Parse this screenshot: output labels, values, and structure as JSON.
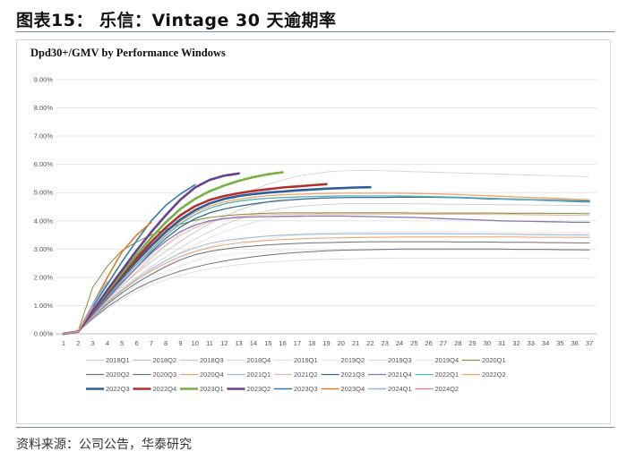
{
  "figure_title": "图表15：  乐信：Vintage 30 天逾期率",
  "source_text": "资料来源：公司公告，华泰研究",
  "colors": {
    "rule": "#6b8fb5",
    "grid": "#e6e6e6"
  },
  "chart_data": {
    "type": "line",
    "title": "Dpd30+/GMV by Performance Windows",
    "xlabel": "",
    "ylabel": "",
    "x": [
      1,
      2,
      3,
      4,
      5,
      6,
      7,
      8,
      9,
      10,
      11,
      12,
      13,
      14,
      15,
      16,
      17,
      18,
      19,
      20,
      21,
      22,
      23,
      24,
      25,
      26,
      27,
      28,
      29,
      30,
      31,
      32,
      33,
      34,
      35,
      36,
      37
    ],
    "ylim": [
      0,
      9
    ],
    "y_ticks": [
      "0.00%",
      "1.00%",
      "2.00%",
      "3.00%",
      "4.00%",
      "5.00%",
      "6.00%",
      "7.00%",
      "8.00%",
      "9.00%"
    ],
    "grid": true,
    "legend_position": "bottom",
    "series": [
      {
        "name": "2018Q1",
        "color": "#d0d0d0",
        "width": 0.8,
        "values": [
          0,
          0.08,
          0.7,
          1.3,
          1.85,
          2.3,
          2.75,
          3.15,
          3.55,
          3.95,
          4.3,
          4.6,
          4.88,
          5.1,
          5.3,
          5.45,
          5.58,
          5.67,
          5.73,
          5.77,
          5.78,
          5.78,
          5.77,
          5.76,
          5.74,
          5.73,
          5.71,
          5.7,
          5.68,
          5.67,
          5.65,
          5.64,
          5.62,
          5.61,
          5.59,
          5.58,
          5.56
        ]
      },
      {
        "name": "2018Q2",
        "color": "#bfbfbf",
        "width": 0.8,
        "values": [
          0,
          0.08,
          0.65,
          1.2,
          1.7,
          2.15,
          2.55,
          2.92,
          3.28,
          3.6,
          3.9,
          4.15,
          4.38,
          4.55,
          4.68,
          4.77,
          4.83,
          4.87,
          4.88,
          4.89,
          4.89,
          4.88,
          4.88,
          4.87,
          4.86,
          4.85,
          4.84,
          4.83,
          4.82,
          4.81,
          4.8,
          4.79,
          4.78,
          4.77,
          4.76,
          4.75,
          4.74
        ]
      },
      {
        "name": "2018Q3",
        "color": "#c8c8c8",
        "width": 0.8,
        "values": [
          0,
          0.08,
          0.62,
          1.15,
          1.6,
          2.0,
          2.38,
          2.72,
          3.05,
          3.35,
          3.62,
          3.87,
          4.07,
          4.23,
          4.36,
          4.45,
          4.51,
          4.55,
          4.58,
          4.6,
          4.61,
          4.61,
          4.61,
          4.61,
          4.6,
          4.6,
          4.59,
          4.59,
          4.58,
          4.58,
          4.57,
          4.57,
          4.56,
          4.56,
          4.55,
          4.55,
          4.54
        ]
      },
      {
        "name": "2018Q4",
        "color": "#dcdcdc",
        "width": 0.8,
        "values": [
          0,
          0.08,
          0.6,
          1.1,
          1.52,
          1.9,
          2.25,
          2.58,
          2.88,
          3.15,
          3.4,
          3.62,
          3.8,
          3.95,
          4.06,
          4.14,
          4.2,
          4.24,
          4.27,
          4.29,
          4.3,
          4.3,
          4.31,
          4.31,
          4.31,
          4.31,
          4.3,
          4.3,
          4.3,
          4.3,
          4.29,
          4.29,
          4.29,
          4.29,
          4.28,
          4.28,
          4.28
        ]
      },
      {
        "name": "2019Q1",
        "color": "#e0e0e0",
        "width": 0.8,
        "values": [
          0,
          0.08,
          0.58,
          1.05,
          1.45,
          1.8,
          2.12,
          2.42,
          2.68,
          2.9,
          3.08,
          3.22,
          3.33,
          3.41,
          3.47,
          3.51,
          3.54,
          3.56,
          3.57,
          3.58,
          3.58,
          3.58,
          3.58,
          3.58,
          3.58,
          3.57,
          3.57,
          3.57,
          3.56,
          3.56,
          3.56,
          3.55,
          3.55,
          3.55,
          3.54,
          3.54,
          3.54
        ]
      },
      {
        "name": "2019Q2",
        "color": "#e8e8e8",
        "width": 0.8,
        "values": [
          0,
          0.08,
          0.56,
          1.0,
          1.38,
          1.7,
          1.98,
          2.22,
          2.42,
          2.58,
          2.7,
          2.79,
          2.85,
          2.89,
          2.92,
          2.94,
          2.95,
          2.96,
          2.96,
          2.97,
          2.97,
          2.97,
          2.97,
          2.97,
          2.97,
          2.97,
          2.96,
          2.96,
          2.96,
          2.96,
          2.96,
          2.95,
          2.95,
          2.95,
          2.95,
          2.95,
          2.94
        ]
      },
      {
        "name": "2019Q3",
        "color": "#d9d9d9",
        "width": 0.8,
        "values": [
          0,
          0.08,
          0.5,
          0.9,
          1.22,
          1.5,
          1.73,
          1.92,
          2.08,
          2.2,
          2.3,
          2.38,
          2.45,
          2.5,
          2.54,
          2.57,
          2.6,
          2.62,
          2.64,
          2.65,
          2.66,
          2.67,
          2.67,
          2.68,
          2.68,
          2.68,
          2.68,
          2.68,
          2.68,
          2.68,
          2.68,
          2.68,
          2.68,
          2.68,
          2.68,
          2.68,
          2.67
        ]
      },
      {
        "name": "2019Q4",
        "color": "#e5e5e5",
        "width": 0.8,
        "values": [
          0,
          0.08,
          0.52,
          0.95,
          1.3,
          1.62,
          1.9,
          2.15,
          2.38,
          2.6,
          2.8,
          2.98,
          3.13,
          3.26,
          3.36,
          3.44,
          3.5,
          3.54,
          3.57,
          3.59,
          3.6,
          3.61,
          3.62,
          3.62,
          3.62,
          3.62,
          3.62,
          3.62,
          3.62,
          3.61,
          3.61,
          3.61,
          3.61,
          3.61,
          3.6,
          3.6,
          3.6
        ]
      },
      {
        "name": "2020Q1",
        "color": "#8a8a3a",
        "width": 1.0,
        "values": [
          0,
          0.1,
          1.65,
          2.4,
          2.95,
          3.25,
          3.5,
          3.7,
          3.88,
          4.02,
          4.12,
          4.18,
          4.22,
          4.25,
          4.27,
          4.28,
          4.28,
          4.28,
          4.28,
          4.28,
          4.28,
          4.28,
          4.28,
          4.28,
          4.27,
          4.27,
          4.27,
          4.27,
          4.27,
          4.27,
          4.27,
          4.26,
          4.26,
          4.26,
          4.26,
          4.26,
          4.25
        ]
      },
      {
        "name": "2020Q2",
        "color": "#6f6f6f",
        "width": 1.0,
        "values": [
          0,
          0.08,
          0.6,
          1.05,
          1.45,
          1.8,
          2.1,
          2.38,
          2.62,
          2.8,
          2.92,
          3.0,
          3.06,
          3.11,
          3.15,
          3.18,
          3.2,
          3.22,
          3.23,
          3.24,
          3.25,
          3.26,
          3.26,
          3.26,
          3.26,
          3.26,
          3.26,
          3.25,
          3.25,
          3.25,
          3.24,
          3.24,
          3.24,
          3.23,
          3.23,
          3.22,
          3.22
        ]
      },
      {
        "name": "2020Q3",
        "color": "#5f7a8a",
        "width": 1.0,
        "values": [
          0,
          0.08,
          0.55,
          0.95,
          1.3,
          1.6,
          1.85,
          2.05,
          2.22,
          2.36,
          2.48,
          2.58,
          2.66,
          2.73,
          2.79,
          2.84,
          2.88,
          2.91,
          2.94,
          2.96,
          2.97,
          2.98,
          2.99,
          3.0,
          3.0,
          3.0,
          3.0,
          3.0,
          3.0,
          3.0,
          3.0,
          2.99,
          2.99,
          2.99,
          2.98,
          2.98,
          2.97
        ]
      },
      {
        "name": "2020Q4",
        "color": "#e8a072",
        "width": 1.0,
        "values": [
          0,
          0.08,
          0.6,
          1.1,
          1.52,
          1.9,
          2.22,
          2.5,
          2.74,
          2.92,
          3.05,
          3.15,
          3.22,
          3.27,
          3.31,
          3.34,
          3.36,
          3.38,
          3.39,
          3.4,
          3.41,
          3.42,
          3.42,
          3.43,
          3.43,
          3.43,
          3.43,
          3.43,
          3.43,
          3.43,
          3.43,
          3.43,
          3.42,
          3.42,
          3.42,
          3.42,
          3.41
        ]
      },
      {
        "name": "2021Q1",
        "color": "#9dbcd8",
        "width": 1.0,
        "values": [
          0,
          0.08,
          0.62,
          1.12,
          1.55,
          1.95,
          2.3,
          2.6,
          2.85,
          3.05,
          3.2,
          3.3,
          3.37,
          3.42,
          3.46,
          3.49,
          3.51,
          3.52,
          3.53,
          3.54,
          3.54,
          3.54,
          3.54,
          3.54,
          3.54,
          3.54,
          3.54,
          3.53,
          3.53,
          3.53,
          3.52,
          3.52,
          3.51,
          3.51,
          3.5,
          3.5,
          3.49
        ]
      },
      {
        "name": "2021Q2",
        "color": "#e7b9a6",
        "width": 1.0,
        "values": [
          0,
          0.08,
          0.66,
          1.2,
          1.7,
          2.2,
          2.68,
          3.12,
          3.48,
          3.76,
          3.96,
          4.08,
          4.16,
          4.2,
          4.22,
          4.23,
          4.24,
          4.24,
          4.24,
          4.24,
          4.24,
          4.24,
          4.24,
          4.24,
          4.24,
          4.23,
          4.23,
          4.23,
          4.23,
          4.22,
          4.22,
          4.22,
          4.21,
          4.21,
          4.2,
          4.2,
          4.19
        ]
      },
      {
        "name": "2021Q3",
        "color": "#3b6e8f",
        "width": 1.3,
        "values": [
          0,
          0.08,
          0.68,
          1.25,
          1.8,
          2.35,
          2.9,
          3.38,
          3.78,
          4.08,
          4.28,
          4.42,
          4.52,
          4.6,
          4.67,
          4.72,
          4.76,
          4.79,
          4.81,
          4.82,
          4.83,
          4.83,
          4.83,
          4.84,
          4.84,
          4.84,
          4.83,
          4.82,
          4.8,
          4.78,
          4.77,
          4.75,
          4.74,
          4.73,
          4.72,
          4.71,
          4.7
        ]
      },
      {
        "name": "2021Q4",
        "color": "#8e72b8",
        "width": 1.3,
        "values": [
          0,
          0.08,
          0.7,
          1.28,
          1.82,
          2.35,
          2.85,
          3.28,
          3.62,
          3.85,
          4.0,
          4.08,
          4.12,
          4.14,
          4.15,
          4.16,
          4.16,
          4.17,
          4.17,
          4.17,
          4.16,
          4.15,
          4.14,
          4.13,
          4.12,
          4.1,
          4.08,
          4.06,
          4.04,
          4.02,
          4.0,
          3.99,
          3.98,
          3.97,
          3.96,
          3.95,
          3.95
        ]
      },
      {
        "name": "2022Q1",
        "color": "#4fb0c9",
        "width": 1.3,
        "values": [
          0,
          0.08,
          0.72,
          1.32,
          1.9,
          2.45,
          2.98,
          3.48,
          3.9,
          4.22,
          4.45,
          4.6,
          4.7,
          4.76,
          4.8,
          4.83,
          4.85,
          4.86,
          4.87,
          4.88,
          4.88,
          4.88,
          4.88,
          4.88,
          4.87,
          4.86,
          4.85,
          4.84,
          4.82,
          4.8,
          4.78,
          4.76,
          4.74,
          4.72,
          4.7,
          4.68,
          4.66
        ]
      },
      {
        "name": "2022Q2",
        "color": "#f0a862",
        "width": 1.3,
        "values": [
          0,
          0.08,
          0.74,
          1.36,
          1.95,
          2.52,
          3.05,
          3.55,
          3.98,
          4.3,
          4.52,
          4.67,
          4.77,
          4.84,
          4.89,
          4.92,
          4.94,
          4.96,
          4.97,
          4.98,
          4.98,
          4.98,
          4.98,
          4.98,
          4.97,
          4.96,
          4.95,
          4.93,
          4.91,
          4.89,
          4.87,
          4.85,
          4.83,
          4.81,
          4.79,
          4.77,
          4.75
        ]
      },
      {
        "name": "2022Q3",
        "color": "#2c5d9c",
        "width": 2.6,
        "values": [
          0,
          0.08,
          0.76,
          1.4,
          2.0,
          2.58,
          3.12,
          3.62,
          4.05,
          4.38,
          4.62,
          4.78,
          4.88,
          4.95,
          5.0,
          5.04,
          5.08,
          5.11,
          5.14,
          5.16,
          5.18,
          5.19,
          null,
          null,
          null,
          null,
          null,
          null,
          null,
          null,
          null,
          null,
          null,
          null,
          null,
          null,
          null
        ]
      },
      {
        "name": "2022Q4",
        "color": "#b3302c",
        "width": 2.6,
        "values": [
          0,
          0.08,
          0.78,
          1.45,
          2.08,
          2.68,
          3.25,
          3.76,
          4.2,
          4.52,
          4.74,
          4.88,
          4.98,
          5.06,
          5.12,
          5.18,
          5.22,
          5.26,
          5.3,
          null,
          null,
          null,
          null,
          null,
          null,
          null,
          null,
          null,
          null,
          null,
          null,
          null,
          null,
          null,
          null,
          null,
          null
        ]
      },
      {
        "name": "2023Q1",
        "color": "#77b043",
        "width": 2.6,
        "values": [
          0,
          0.08,
          0.8,
          1.5,
          2.15,
          2.8,
          3.4,
          3.95,
          4.42,
          4.78,
          5.05,
          5.25,
          5.42,
          5.55,
          5.65,
          5.72,
          null,
          null,
          null,
          null,
          null,
          null,
          null,
          null,
          null,
          null,
          null,
          null,
          null,
          null,
          null,
          null,
          null,
          null,
          null,
          null,
          null
        ]
      },
      {
        "name": "2023Q2",
        "color": "#6a3f8f",
        "width": 2.6,
        "values": [
          0,
          0.08,
          0.82,
          1.55,
          2.25,
          2.95,
          3.6,
          4.2,
          4.75,
          5.18,
          5.45,
          5.6,
          5.68,
          null,
          null,
          null,
          null,
          null,
          null,
          null,
          null,
          null,
          null,
          null,
          null,
          null,
          null,
          null,
          null,
          null,
          null,
          null,
          null,
          null,
          null,
          null,
          null
        ]
      },
      {
        "name": "2023Q3",
        "color": "#2f7fa8",
        "width": 1.6,
        "values": [
          0,
          0.08,
          0.95,
          1.75,
          2.55,
          3.3,
          4.0,
          4.55,
          4.95,
          5.28,
          null,
          null,
          null,
          null,
          null,
          null,
          null,
          null,
          null,
          null,
          null,
          null,
          null,
          null,
          null,
          null,
          null,
          null,
          null,
          null,
          null,
          null,
          null,
          null,
          null,
          null,
          null
        ]
      },
      {
        "name": "2023Q4",
        "color": "#e07b22",
        "width": 1.6,
        "values": [
          0,
          0.08,
          1.05,
          2.0,
          2.9,
          3.5,
          3.95,
          null,
          null,
          null,
          null,
          null,
          null,
          null,
          null,
          null,
          null,
          null,
          null,
          null,
          null,
          null,
          null,
          null,
          null,
          null,
          null,
          null,
          null,
          null,
          null,
          null,
          null,
          null,
          null,
          null,
          null
        ]
      },
      {
        "name": "2024Q1",
        "color": "#8fb3d6",
        "width": 1.6,
        "values": [
          0,
          0.08,
          1.05,
          1.85,
          null,
          null,
          null,
          null,
          null,
          null,
          null,
          null,
          null,
          null,
          null,
          null,
          null,
          null,
          null,
          null,
          null,
          null,
          null,
          null,
          null,
          null,
          null,
          null,
          null,
          null,
          null,
          null,
          null,
          null,
          null,
          null,
          null
        ]
      },
      {
        "name": "2024Q2",
        "color": "#d98c8c",
        "width": 1.6,
        "values": [
          0,
          0.08,
          0.95,
          null,
          null,
          null,
          null,
          null,
          null,
          null,
          null,
          null,
          null,
          null,
          null,
          null,
          null,
          null,
          null,
          null,
          null,
          null,
          null,
          null,
          null,
          null,
          null,
          null,
          null,
          null,
          null,
          null,
          null,
          null,
          null,
          null,
          null
        ]
      }
    ]
  }
}
